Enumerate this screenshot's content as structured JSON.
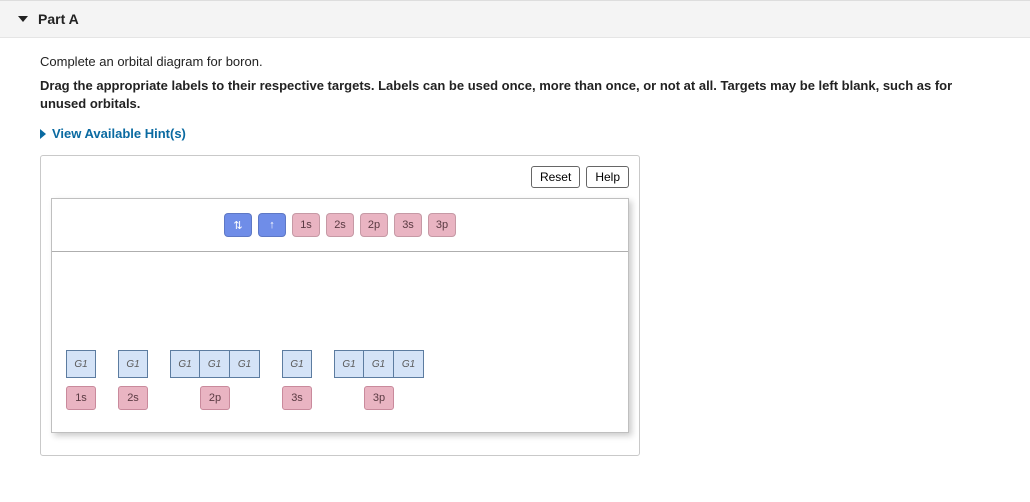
{
  "header": {
    "title": "Part A"
  },
  "description": "Complete an orbital diagram for boron.",
  "instructions": "Drag the appropriate labels to their respective targets. Labels can be used once, more than once, or not at all. Targets may be left blank, such as for unused orbitals.",
  "hints_label": "View Available Hint(s)",
  "buttons": {
    "reset": "Reset",
    "help": "Help"
  },
  "tray": {
    "chips": [
      {
        "label": "⇅",
        "kind": "blue"
      },
      {
        "label": "↑",
        "kind": "blue"
      },
      {
        "label": "1s",
        "kind": "pink"
      },
      {
        "label": "2s",
        "kind": "pink"
      },
      {
        "label": "2p",
        "kind": "pink"
      },
      {
        "label": "3s",
        "kind": "pink"
      },
      {
        "label": "3p",
        "kind": "pink"
      }
    ]
  },
  "orbitals": [
    {
      "slots": 1,
      "placeholder": "G1",
      "label": "1s"
    },
    {
      "slots": 1,
      "placeholder": "G1",
      "label": "2s"
    },
    {
      "slots": 3,
      "placeholder": "G1",
      "label": "2p"
    },
    {
      "slots": 1,
      "placeholder": "G1",
      "label": "3s"
    },
    {
      "slots": 3,
      "placeholder": "G1",
      "label": "3p"
    }
  ],
  "colors": {
    "chip_blue": "#6f8de8",
    "chip_pink": "#e9b4c2",
    "slot_bg": "#d4e3f7",
    "slot_border": "#5c7ca0",
    "link": "#0a6aa1",
    "header_bg": "#f4f4f4"
  }
}
